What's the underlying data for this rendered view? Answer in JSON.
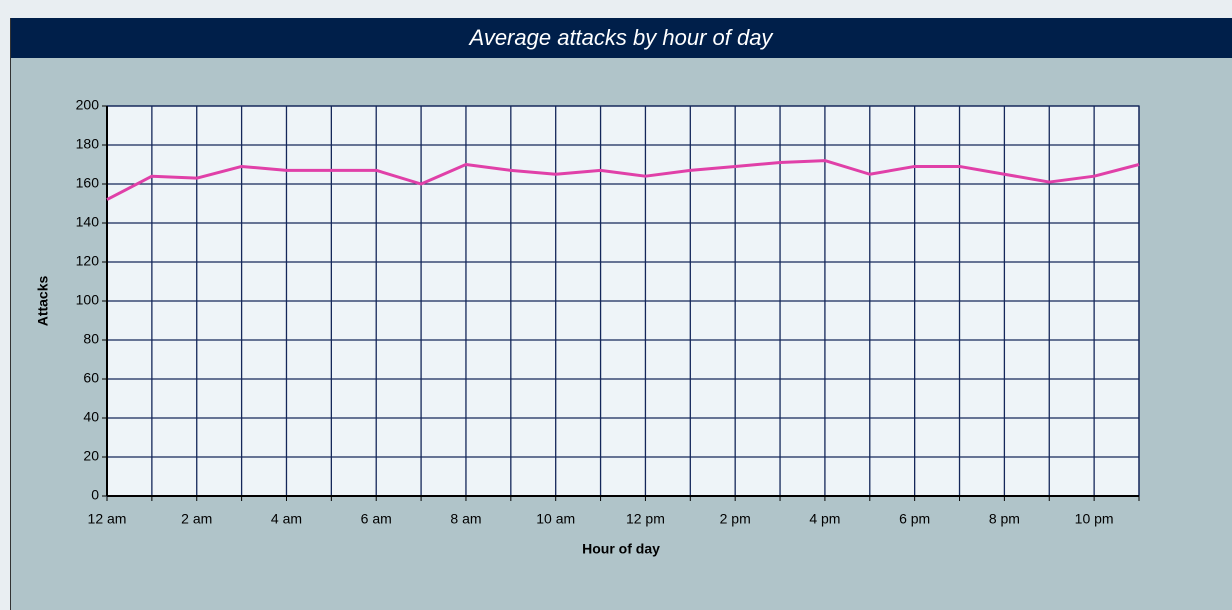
{
  "chart_data": {
    "type": "line",
    "title": "Average attacks by hour of day",
    "x_label": "Hour of day",
    "y_label": "Attacks",
    "categories": [
      "12 am",
      null,
      "2 am",
      null,
      "4 am",
      null,
      "6 am",
      null,
      "8 am",
      null,
      "10 am",
      null,
      "12 pm",
      null,
      "2 pm",
      null,
      "4 pm",
      null,
      "6 pm",
      null,
      "8 pm",
      null,
      "10 pm",
      null
    ],
    "series": [
      {
        "name": "Attacks",
        "color": "#e040a8",
        "values": [
          152,
          164,
          163,
          169,
          167,
          167,
          167,
          160,
          170,
          167,
          165,
          167,
          164,
          167,
          169,
          171,
          172,
          165,
          169,
          169,
          165,
          161,
          164,
          170
        ]
      }
    ],
    "ylim": [
      0,
      200
    ],
    "yticks": [
      0,
      20,
      40,
      60,
      80,
      100,
      120,
      140,
      160,
      180,
      200
    ],
    "grid": true
  }
}
